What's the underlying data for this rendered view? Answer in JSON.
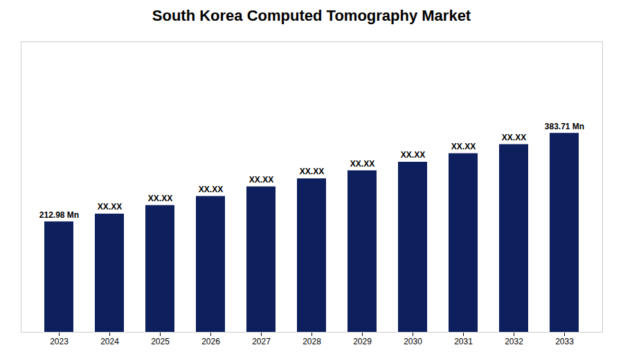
{
  "chart_data": {
    "type": "bar",
    "title": "South Korea Computed Tomography Market",
    "categories": [
      "2023",
      "2024",
      "2025",
      "2026",
      "2027",
      "2028",
      "2029",
      "2030",
      "2031",
      "2032",
      "2033"
    ],
    "values": [
      212.98,
      228.0,
      244.5,
      262.0,
      280.5,
      296.0,
      311.5,
      328.0,
      344.5,
      362.0,
      383.71
    ],
    "value_labels": [
      "212.98 Mn",
      "XX.XX",
      "XX.XX",
      "XX.XX",
      "XX.XX",
      "XX.XX",
      "XX.XX",
      "XX.XX",
      "XX.XX",
      "XX.XX",
      "383.71 Mn"
    ],
    "data_labels": true,
    "color": "#0d1f5c",
    "ylim": [
      0,
      560
    ],
    "grid": false,
    "tick_labels": "x"
  }
}
